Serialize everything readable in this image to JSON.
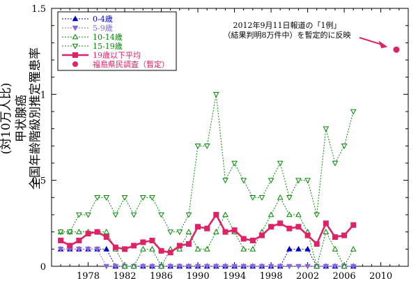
{
  "chart_data": {
    "type": "line",
    "title": "",
    "xlabel": "",
    "ylabel": "甲状腺癌 全国年齢階級別推定罹患率 (対10万人比)",
    "ylabel_lines": [
      "甲状腺癌",
      "全国年齢階級別推定罹患率",
      "(対10万人比)"
    ],
    "xlim": [
      1974,
      2013
    ],
    "ylim": [
      0,
      1.5
    ],
    "x_ticks": [
      1978,
      1982,
      1986,
      1990,
      1994,
      1998,
      2002,
      2006,
      2010
    ],
    "y_ticks": [
      0,
      0.5,
      1,
      1.5
    ],
    "y_tick_labels": [
      "0",
      "0.5",
      "1",
      "1.5"
    ],
    "grid": false,
    "legend_position": "top-left",
    "annotation": {
      "lines": [
        "2012年9月11日報道の「1例」",
        "（結果判明8万件中）を暫定的に反映"
      ],
      "arrow_to": [
        2011.5,
        1.26
      ]
    },
    "series": [
      {
        "name": "0-4歳",
        "color": "#0000cc",
        "marker": "triangle-up",
        "dash": "dotted",
        "x": [
          1975,
          1976,
          1977,
          1978,
          1979,
          1980,
          1981,
          1982,
          1983,
          1984,
          1985,
          1986,
          1987,
          1988,
          1989,
          1990,
          1991,
          1992,
          1993,
          1994,
          1995,
          1996,
          1997,
          1998,
          1999,
          2000,
          2001,
          2002,
          2003,
          2004,
          2005,
          2006,
          2007
        ],
        "y": [
          0.1,
          0.1,
          0.1,
          0.1,
          0.1,
          0.1,
          0,
          0,
          0,
          0,
          0,
          0,
          0,
          0,
          0,
          0,
          0,
          0,
          0,
          0,
          0,
          0,
          0,
          0,
          0,
          0.1,
          0.1,
          0.1,
          0,
          0,
          0,
          0,
          0
        ]
      },
      {
        "name": "5-9歳",
        "color": "#8866dd",
        "marker": "triangle-down",
        "dash": "dotted",
        "x": [
          1975,
          1976,
          1977,
          1978,
          1979,
          1980,
          1981,
          1982,
          1983,
          1984,
          1985,
          1986,
          1987,
          1988,
          1989,
          1990,
          1991,
          1992,
          1993,
          1994,
          1995,
          1996,
          1997,
          1998,
          1999,
          2000,
          2001,
          2002,
          2003,
          2004,
          2005,
          2006,
          2007
        ],
        "y": [
          0.1,
          0.1,
          0.1,
          0.1,
          0.1,
          0,
          0,
          0,
          0,
          0,
          0,
          0,
          0,
          0,
          0,
          0,
          0,
          0,
          0,
          0,
          0,
          0,
          0,
          0,
          0,
          0,
          0,
          0,
          0,
          0,
          0,
          0,
          0
        ]
      },
      {
        "name": "10-14歳",
        "color": "#008800",
        "marker": "triangle-up-open",
        "dash": "dotted",
        "x": [
          1975,
          1976,
          1977,
          1978,
          1979,
          1980,
          1981,
          1982,
          1983,
          1984,
          1985,
          1986,
          1987,
          1988,
          1989,
          1990,
          1991,
          1992,
          1993,
          1994,
          1995,
          1996,
          1997,
          1998,
          1999,
          2000,
          2001,
          2002,
          2003,
          2004,
          2005,
          2006,
          2007
        ],
        "y": [
          0.2,
          0.2,
          0.2,
          0.2,
          0.2,
          0.2,
          0.1,
          0,
          0,
          0.1,
          0.1,
          0,
          0.1,
          0.1,
          0.2,
          0.1,
          0.1,
          0.2,
          0.3,
          0.2,
          0.1,
          0.1,
          0.2,
          0.3,
          0.4,
          0.3,
          0.3,
          0.2,
          0,
          0.2,
          0.1,
          0,
          0.1
        ]
      },
      {
        "name": "15-19歳",
        "color": "#008800",
        "marker": "triangle-down-open",
        "dash": "dotted",
        "x": [
          1975,
          1976,
          1977,
          1978,
          1979,
          1980,
          1981,
          1982,
          1983,
          1984,
          1985,
          1986,
          1987,
          1988,
          1989,
          1990,
          1991,
          1992,
          1993,
          1994,
          1995,
          1996,
          1997,
          1998,
          1999,
          2000,
          2001,
          2002,
          2003,
          2004,
          2005,
          2006,
          2007
        ],
        "y": [
          0.2,
          0.2,
          0.3,
          0.3,
          0.4,
          0.4,
          0.3,
          0.4,
          0.3,
          0.4,
          0.4,
          0.3,
          0.2,
          0.2,
          0.3,
          0.7,
          0.7,
          1.0,
          0.5,
          0.6,
          0.5,
          0.4,
          0.4,
          0.5,
          0.6,
          0.4,
          0.5,
          0.5,
          0.3,
          0.8,
          0.6,
          0.7,
          0.9
        ]
      },
      {
        "name": "19歳以下平均",
        "color": "#dd2266",
        "marker": "square",
        "dash": "solid",
        "x": [
          1975,
          1976,
          1977,
          1978,
          1979,
          1980,
          1981,
          1982,
          1983,
          1984,
          1985,
          1986,
          1987,
          1988,
          1989,
          1990,
          1991,
          1992,
          1993,
          1994,
          1995,
          1996,
          1997,
          1998,
          1999,
          2000,
          2001,
          2002,
          2003,
          2004,
          2005,
          2006,
          2007
        ],
        "y": [
          0.15,
          0.12,
          0.15,
          0.19,
          0.2,
          0.17,
          0.11,
          0.1,
          0.12,
          0.14,
          0.15,
          0.09,
          0.08,
          0.12,
          0.13,
          0.23,
          0.22,
          0.3,
          0.2,
          0.21,
          0.16,
          0.15,
          0.18,
          0.23,
          0.25,
          0.22,
          0.23,
          0.18,
          0.13,
          0.25,
          0.17,
          0.18,
          0.24
        ]
      },
      {
        "name": "福島県民調査（暫定）",
        "color": "#dd2266",
        "marker": "circle",
        "dash": "none",
        "x": [
          2011.7
        ],
        "y": [
          1.26
        ]
      }
    ]
  }
}
